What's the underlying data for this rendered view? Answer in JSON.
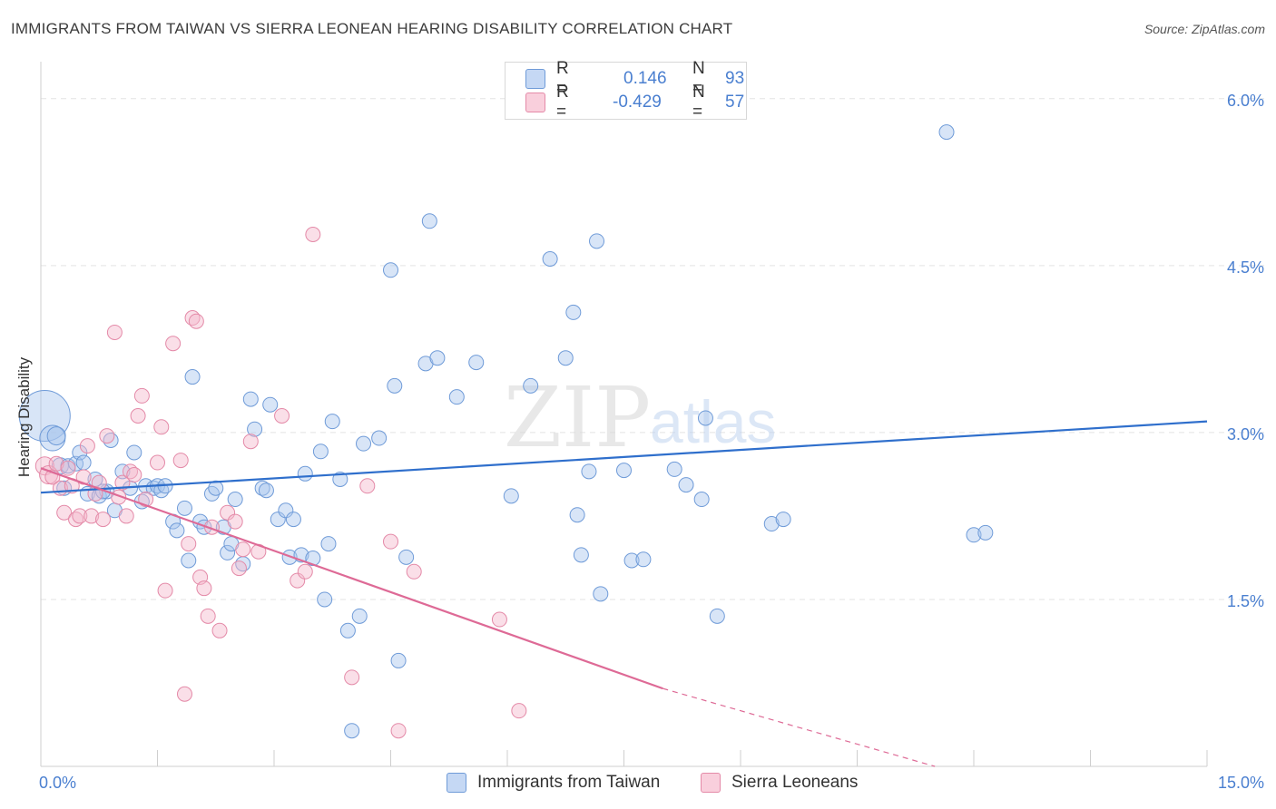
{
  "title": "IMMIGRANTS FROM TAIWAN VS SIERRA LEONEAN HEARING DISABILITY CORRELATION CHART",
  "source": "Source: ZipAtlas.com",
  "watermark": {
    "zip": "ZIP",
    "atlas": "atlas"
  },
  "legend_top": {
    "rows": [
      {
        "r_label": "R =",
        "r_value": "0.146",
        "n_label": "N =",
        "n_value": "93"
      },
      {
        "r_label": "R =",
        "r_value": "-0.429",
        "n_label": "N =",
        "n_value": "57"
      }
    ]
  },
  "colors": {
    "blue_fill": "#a9c6ee",
    "blue_stroke": "#6f9bd8",
    "blue_line": "#2f6fcc",
    "pink_fill": "#f4b8cb",
    "pink_stroke": "#e48aa8",
    "pink_line": "#de6a96",
    "grid": "#e3e3e3",
    "axis_text": "#4a7fd0"
  },
  "chart_data": {
    "type": "scatter",
    "title": "IMMIGRANTS FROM TAIWAN VS SIERRA LEONEAN HEARING DISABILITY CORRELATION CHART",
    "xlabel": "",
    "ylabel": "Hearing Disability",
    "xlim": [
      0,
      15
    ],
    "ylim": [
      0,
      6.3
    ],
    "x_tick_labels": [
      "0.0%",
      "15.0%"
    ],
    "y_ticks": [
      1.5,
      3.0,
      4.5,
      6.0
    ],
    "y_tick_labels": [
      "1.5%",
      "3.0%",
      "4.5%",
      "6.0%"
    ],
    "series": [
      {
        "name": "Immigrants from Taiwan",
        "color": "blue",
        "trend": {
          "x0": 0,
          "y0": 2.46,
          "x1": 15,
          "y1": 3.1
        },
        "points": [
          [
            0.05,
            3.15,
            28
          ],
          [
            0.15,
            2.95,
            14
          ],
          [
            0.2,
            2.97,
            10
          ],
          [
            0.25,
            2.7,
            9
          ],
          [
            0.3,
            2.5,
            8
          ],
          [
            0.35,
            2.7,
            8
          ],
          [
            0.45,
            2.72,
            8
          ],
          [
            0.5,
            2.82,
            8
          ],
          [
            0.55,
            2.73,
            8
          ],
          [
            0.6,
            2.45,
            8
          ],
          [
            0.7,
            2.58,
            8
          ],
          [
            0.75,
            2.43,
            8
          ],
          [
            0.85,
            2.47,
            8
          ],
          [
            0.9,
            2.93,
            8
          ],
          [
            0.95,
            2.3,
            8
          ],
          [
            1.05,
            2.65,
            8
          ],
          [
            1.15,
            2.5,
            8
          ],
          [
            1.2,
            2.82,
            8
          ],
          [
            1.3,
            2.38,
            8
          ],
          [
            1.35,
            2.52,
            8
          ],
          [
            1.45,
            2.5,
            8
          ],
          [
            1.5,
            2.52,
            8
          ],
          [
            1.55,
            2.48,
            8
          ],
          [
            1.7,
            2.2,
            8
          ],
          [
            1.75,
            2.12,
            8
          ],
          [
            1.85,
            2.32,
            8
          ],
          [
            1.9,
            1.85,
            8
          ],
          [
            1.95,
            3.5,
            8
          ],
          [
            2.05,
            2.2,
            8
          ],
          [
            2.1,
            2.15,
            8
          ],
          [
            2.2,
            2.45,
            8
          ],
          [
            2.25,
            2.5,
            8
          ],
          [
            2.35,
            2.15,
            8
          ],
          [
            2.4,
            1.92,
            8
          ],
          [
            2.45,
            2.0,
            8
          ],
          [
            2.5,
            2.4,
            8
          ],
          [
            2.6,
            1.82,
            8
          ],
          [
            2.7,
            3.3,
            8
          ],
          [
            2.75,
            3.03,
            8
          ],
          [
            2.85,
            2.5,
            8
          ],
          [
            2.9,
            2.48,
            8
          ],
          [
            2.95,
            3.25,
            8
          ],
          [
            3.05,
            2.22,
            8
          ],
          [
            3.15,
            2.3,
            8
          ],
          [
            3.2,
            1.88,
            8
          ],
          [
            3.25,
            2.22,
            8
          ],
          [
            3.35,
            1.9,
            8
          ],
          [
            3.4,
            2.63,
            8
          ],
          [
            3.5,
            1.87,
            8
          ],
          [
            3.6,
            2.83,
            8
          ],
          [
            3.65,
            1.5,
            8
          ],
          [
            3.7,
            2.0,
            8
          ],
          [
            3.75,
            3.1,
            8
          ],
          [
            3.85,
            2.58,
            8
          ],
          [
            3.95,
            1.22,
            8
          ],
          [
            4.0,
            0.32,
            8
          ],
          [
            4.1,
            1.35,
            8
          ],
          [
            4.15,
            2.9,
            8
          ],
          [
            4.35,
            2.95,
            8
          ],
          [
            4.5,
            4.46,
            8
          ],
          [
            4.55,
            3.42,
            8
          ],
          [
            4.6,
            0.95,
            8
          ],
          [
            4.7,
            1.88,
            8
          ],
          [
            4.95,
            3.62,
            8
          ],
          [
            5.1,
            3.67,
            8
          ],
          [
            5.0,
            4.9,
            8
          ],
          [
            5.35,
            3.32,
            8
          ],
          [
            5.6,
            3.63,
            8
          ],
          [
            6.05,
            2.43,
            8
          ],
          [
            6.3,
            3.42,
            8
          ],
          [
            6.55,
            4.56,
            8
          ],
          [
            6.75,
            3.67,
            8
          ],
          [
            6.85,
            4.08,
            8
          ],
          [
            6.9,
            2.26,
            8
          ],
          [
            6.95,
            1.9,
            8
          ],
          [
            7.05,
            2.65,
            8
          ],
          [
            7.2,
            1.55,
            8
          ],
          [
            7.15,
            4.72,
            8
          ],
          [
            7.5,
            2.66,
            8
          ],
          [
            7.6,
            1.85,
            8
          ],
          [
            7.75,
            1.86,
            8
          ],
          [
            8.15,
            2.67,
            8
          ],
          [
            8.3,
            2.53,
            8
          ],
          [
            8.5,
            2.4,
            8
          ],
          [
            8.55,
            3.13,
            8
          ],
          [
            8.7,
            1.35,
            8
          ],
          [
            9.4,
            2.18,
            8
          ],
          [
            9.55,
            2.22,
            8
          ],
          [
            11.65,
            5.7,
            8
          ],
          [
            12.0,
            2.08,
            8
          ],
          [
            12.15,
            2.1,
            8
          ],
          [
            0.8,
            2.47,
            8
          ],
          [
            1.6,
            2.52,
            8
          ]
        ]
      },
      {
        "name": "Sierra Leoneans",
        "color": "pink",
        "trend": {
          "x0": 0,
          "y0": 2.68,
          "x1": 8.0,
          "y1": 0.7,
          "dash_x1": 11.5,
          "dash_y1": 0.0
        },
        "points": [
          [
            0.05,
            2.7,
            10
          ],
          [
            0.1,
            2.62,
            10
          ],
          [
            0.15,
            2.6,
            8
          ],
          [
            0.2,
            2.72,
            8
          ],
          [
            0.25,
            2.5,
            8
          ],
          [
            0.3,
            2.28,
            8
          ],
          [
            0.35,
            2.68,
            8
          ],
          [
            0.4,
            2.52,
            8
          ],
          [
            0.45,
            2.22,
            8
          ],
          [
            0.5,
            2.25,
            8
          ],
          [
            0.55,
            2.6,
            8
          ],
          [
            0.6,
            2.88,
            8
          ],
          [
            0.65,
            2.25,
            8
          ],
          [
            0.7,
            2.45,
            8
          ],
          [
            0.75,
            2.55,
            8
          ],
          [
            0.8,
            2.22,
            8
          ],
          [
            0.85,
            2.97,
            8
          ],
          [
            0.95,
            3.9,
            8
          ],
          [
            1.0,
            2.42,
            8
          ],
          [
            1.05,
            2.55,
            8
          ],
          [
            1.1,
            2.25,
            8
          ],
          [
            1.15,
            2.65,
            8
          ],
          [
            1.2,
            2.62,
            8
          ],
          [
            1.25,
            3.15,
            8
          ],
          [
            1.3,
            3.33,
            8
          ],
          [
            1.35,
            2.4,
            8
          ],
          [
            1.5,
            2.73,
            8
          ],
          [
            1.55,
            3.05,
            8
          ],
          [
            1.6,
            1.58,
            8
          ],
          [
            1.7,
            3.8,
            8
          ],
          [
            1.8,
            2.75,
            8
          ],
          [
            1.85,
            0.65,
            8
          ],
          [
            1.9,
            2.0,
            8
          ],
          [
            1.95,
            4.03,
            8
          ],
          [
            2.0,
            4.0,
            8
          ],
          [
            2.05,
            1.7,
            8
          ],
          [
            2.1,
            1.6,
            8
          ],
          [
            2.15,
            1.35,
            8
          ],
          [
            2.2,
            2.15,
            8
          ],
          [
            2.3,
            1.22,
            8
          ],
          [
            2.4,
            2.28,
            8
          ],
          [
            2.5,
            2.2,
            8
          ],
          [
            2.55,
            1.78,
            8
          ],
          [
            2.6,
            1.95,
            8
          ],
          [
            2.7,
            2.92,
            8
          ],
          [
            2.8,
            1.93,
            8
          ],
          [
            3.1,
            3.15,
            8
          ],
          [
            3.3,
            1.67,
            8
          ],
          [
            3.4,
            1.75,
            8
          ],
          [
            3.5,
            4.78,
            8
          ],
          [
            4.0,
            0.8,
            8
          ],
          [
            4.2,
            2.52,
            8
          ],
          [
            4.5,
            2.02,
            8
          ],
          [
            4.6,
            0.32,
            8
          ],
          [
            4.8,
            1.75,
            8
          ],
          [
            5.9,
            1.32,
            8
          ],
          [
            6.15,
            0.5,
            8
          ]
        ]
      }
    ]
  },
  "legend_bottom": [
    "Immigrants from Taiwan",
    "Sierra Leoneans"
  ]
}
